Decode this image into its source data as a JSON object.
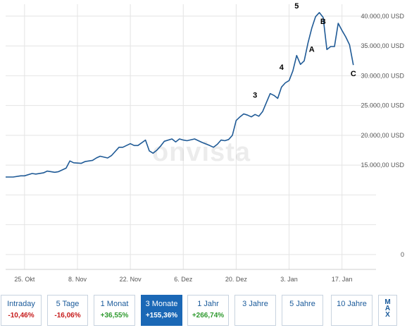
{
  "watermark": "onvista",
  "periods": [
    {
      "label": "Intraday",
      "value": "-10,46%",
      "sign": "neg",
      "active": false
    },
    {
      "label": "5 Tage",
      "value": "-16,06%",
      "sign": "neg",
      "active": false
    },
    {
      "label": "1 Monat",
      "value": "+36,55%",
      "sign": "pos",
      "active": false
    },
    {
      "label": "3 Monate",
      "value": "+155,36%",
      "sign": "pos",
      "active": true
    },
    {
      "label": "1 Jahr",
      "value": "+266,74%",
      "sign": "pos",
      "active": false
    },
    {
      "label": "3 Jahre",
      "value": "",
      "sign": "",
      "active": false
    },
    {
      "label": "5 Jahre",
      "value": "",
      "sign": "",
      "active": false
    },
    {
      "label": "10 Jahre",
      "value": "",
      "sign": "",
      "active": false
    },
    {
      "label": "MAX",
      "value": "",
      "sign": "",
      "active": false
    }
  ],
  "chart_data": {
    "type": "line",
    "title": "",
    "xlabel": "",
    "ylabel": "",
    "color": "#1f5a96",
    "xlim": [
      -4,
      94
    ],
    "ylim": [
      -2500,
      42000
    ],
    "x_ticks": [
      {
        "x": 1,
        "label": "25. Okt"
      },
      {
        "x": 15,
        "label": "8. Nov"
      },
      {
        "x": 29,
        "label": "22. Nov"
      },
      {
        "x": 43,
        "label": "6. Dez"
      },
      {
        "x": 57,
        "label": "20. Dez"
      },
      {
        "x": 71,
        "label": "3. Jan"
      },
      {
        "x": 85,
        "label": "17. Jan"
      }
    ],
    "y_ticks": [
      {
        "y": 0,
        "label": "0"
      },
      {
        "y": 5000,
        "label": ""
      },
      {
        "y": 10000,
        "label": ""
      },
      {
        "y": 15000,
        "label": "15.000,00 USD"
      },
      {
        "y": 20000,
        "label": "20.000,00 USD"
      },
      {
        "y": 25000,
        "label": "25.000,00 USD"
      },
      {
        "y": 30000,
        "label": "30.000,00 USD"
      },
      {
        "y": 35000,
        "label": "35.000,00 USD"
      },
      {
        "y": 40000,
        "label": "40.000,00 USD"
      }
    ],
    "grid": true,
    "series": [
      {
        "x": [
          -4,
          -2,
          0,
          1,
          3,
          4,
          6,
          7,
          9,
          10,
          12,
          13,
          14,
          16,
          17,
          19,
          20,
          21,
          23,
          24,
          26,
          27,
          29,
          30,
          31,
          33,
          34,
          35,
          36,
          37,
          38,
          40,
          41,
          42,
          43,
          44,
          46,
          47,
          48,
          50,
          51,
          52,
          53,
          54,
          55,
          56,
          57,
          58,
          59,
          60,
          61,
          62,
          63,
          64,
          65,
          66,
          67,
          68,
          69,
          70,
          71,
          72,
          73,
          74,
          75,
          76,
          77,
          78,
          79,
          80,
          81,
          82,
          83,
          84,
          85,
          86,
          87,
          88
        ],
        "y": [
          13000,
          13000,
          13200,
          13200,
          13600,
          13500,
          13700,
          14000,
          13800,
          13900,
          14500,
          15700,
          15400,
          15300,
          15600,
          15800,
          16200,
          16500,
          16200,
          16600,
          18000,
          18000,
          18600,
          18300,
          18300,
          19200,
          17400,
          17000,
          17500,
          18200,
          19000,
          19400,
          18900,
          19400,
          19200,
          19100,
          19400,
          19100,
          18800,
          18300,
          18000,
          18500,
          19200,
          19100,
          19300,
          20000,
          22500,
          23100,
          23600,
          23400,
          23100,
          23500,
          23200,
          24000,
          25500,
          27000,
          26700,
          26200,
          28100,
          28800,
          29200,
          30800,
          33400,
          31900,
          32500,
          35500,
          38000,
          39900,
          40600,
          39800,
          34400,
          34900,
          34900,
          38800,
          37600,
          36500,
          35200,
          31800
        ]
      }
    ],
    "annotations": [
      {
        "text": "5",
        "x": 73,
        "y": 41300
      },
      {
        "text": "B",
        "x": 80,
        "y": 38700
      },
      {
        "text": "A",
        "x": 77,
        "y": 34000
      },
      {
        "text": "4",
        "x": 69,
        "y": 31000
      },
      {
        "text": "3",
        "x": 62,
        "y": 26300
      },
      {
        "text": "C",
        "x": 88,
        "y": 29900
      }
    ]
  }
}
